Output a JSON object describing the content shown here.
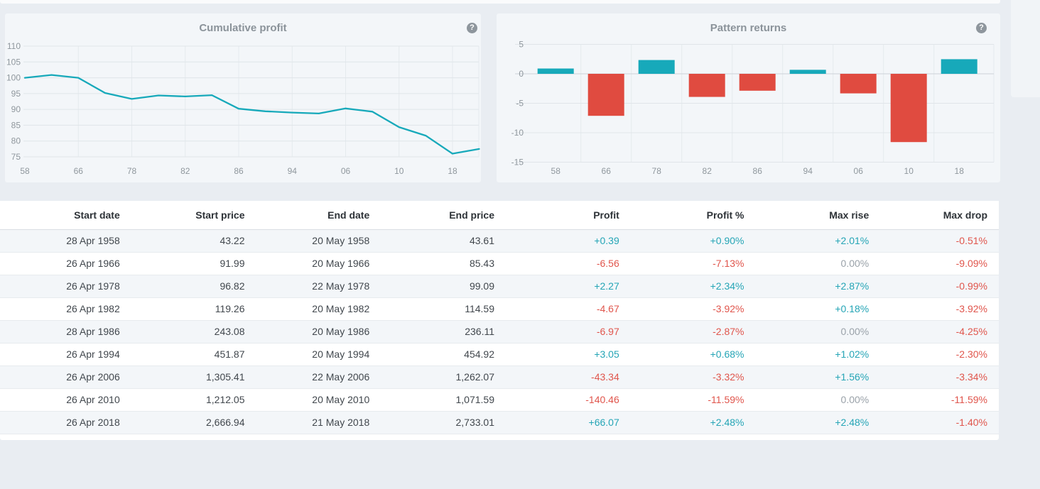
{
  "page": {
    "help_icon_glyph": "?"
  },
  "chart_data": [
    {
      "id": "cumulative_profit",
      "type": "line",
      "title": "Cumulative profit",
      "x_tick_labels": [
        "58",
        "66",
        "78",
        "82",
        "86",
        "94",
        "06",
        "10",
        "18"
      ],
      "x_note": "series of 18 evenly spaced points; tick labels mark points 0,2,4,...,16; final point at right edge is unlabeled",
      "y_ticks": [
        110,
        105,
        100,
        95,
        90,
        85,
        80,
        75
      ],
      "ylim": [
        75,
        110
      ],
      "values": [
        100.0,
        100.9,
        100.0,
        95.2,
        93.3,
        94.4,
        94.1,
        94.5,
        90.2,
        89.4,
        89.0,
        88.7,
        90.3,
        89.3,
        84.4,
        81.7,
        76.0,
        77.5
      ],
      "line_color": "#17a9ba",
      "grid": true,
      "legend": "none"
    },
    {
      "id": "pattern_returns",
      "type": "bar",
      "title": "Pattern returns",
      "categories": [
        "58",
        "66",
        "78",
        "82",
        "86",
        "94",
        "06",
        "10",
        "18"
      ],
      "values": [
        0.9,
        -7.13,
        2.34,
        -3.92,
        -2.87,
        0.68,
        -3.32,
        -11.59,
        2.48
      ],
      "y_ticks": [
        5,
        0,
        -5,
        -10,
        -15
      ],
      "ylim": [
        -15,
        5
      ],
      "positive_color": "#17a9ba",
      "negative_color": "#e04b40",
      "grid": true,
      "legend": "none"
    }
  ],
  "table": {
    "columns": [
      "Start date",
      "Start price",
      "End date",
      "End price",
      "Profit",
      "Profit %",
      "Max rise",
      "Max drop"
    ],
    "rows": [
      [
        "28 Apr 1958",
        "43.22",
        "20 May 1958",
        "43.61",
        "+0.39",
        "+0.90%",
        "+2.01%",
        "-0.51%"
      ],
      [
        "26 Apr 1966",
        "91.99",
        "20 May 1966",
        "85.43",
        "-6.56",
        "-7.13%",
        "0.00%",
        "-9.09%"
      ],
      [
        "26 Apr 1978",
        "96.82",
        "22 May 1978",
        "99.09",
        "+2.27",
        "+2.34%",
        "+2.87%",
        "-0.99%"
      ],
      [
        "26 Apr 1982",
        "119.26",
        "20 May 1982",
        "114.59",
        "-4.67",
        "-3.92%",
        "+0.18%",
        "-3.92%"
      ],
      [
        "28 Apr 1986",
        "243.08",
        "20 May 1986",
        "236.11",
        "-6.97",
        "-2.87%",
        "0.00%",
        "-4.25%"
      ],
      [
        "26 Apr 1994",
        "451.87",
        "20 May 1994",
        "454.92",
        "+3.05",
        "+0.68%",
        "+1.02%",
        "-2.30%"
      ],
      [
        "26 Apr 2006",
        "1,305.41",
        "22 May 2006",
        "1,262.07",
        "-43.34",
        "-3.32%",
        "+1.56%",
        "-3.34%"
      ],
      [
        "26 Apr 2010",
        "1,212.05",
        "20 May 2010",
        "1,071.59",
        "-140.46",
        "-11.59%",
        "0.00%",
        "-11.59%"
      ],
      [
        "26 Apr 2018",
        "2,666.94",
        "21 May 2018",
        "2,733.01",
        "+66.07",
        "+2.48%",
        "+2.48%",
        "-1.40%"
      ]
    ]
  },
  "colors": {
    "positive_text": "#25a5b6",
    "negative_text": "#e0554c",
    "neutral_text": "#9aa2a9",
    "panel_bg": "#f3f6f9",
    "page_bg": "#e9edf2"
  }
}
